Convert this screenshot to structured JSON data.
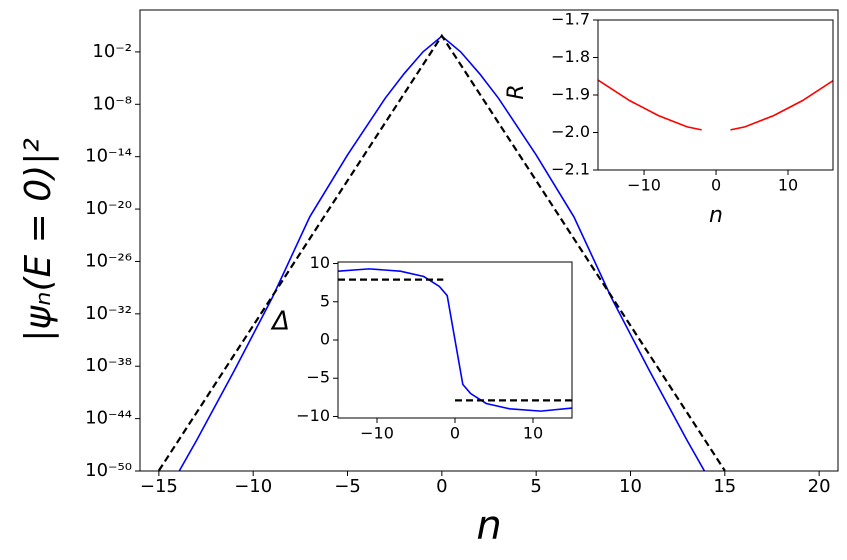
{
  "chart_data": [
    {
      "type": "line",
      "y_scale": "log",
      "x_label": "n",
      "y_label": "|ψₙ(E = 0)|²",
      "xlim": [
        -16,
        21
      ],
      "ylim": [
        1e-50,
        630
      ],
      "xticks": [
        {
          "value": -15,
          "label": "−15"
        },
        {
          "value": -10,
          "label": "−10"
        },
        {
          "value": -5,
          "label": "−5"
        },
        0,
        5,
        10,
        15,
        20
      ],
      "yticks": [
        {
          "value": 0.01,
          "label": "10⁻²"
        },
        {
          "value": 1e-08,
          "label": "10⁻⁸"
        },
        {
          "value": 1e-14,
          "label": "10⁻¹⁴"
        },
        {
          "value": 1e-20,
          "label": "10⁻²⁰"
        },
        {
          "value": 1e-26,
          "label": "10⁻²⁶"
        },
        {
          "value": 1e-32,
          "label": "10⁻³²"
        },
        {
          "value": 1e-38,
          "label": "10⁻³⁸"
        },
        {
          "value": 1e-44,
          "label": "10⁻⁴⁴"
        },
        {
          "value": 1e-50,
          "label": "10⁻⁵⁰"
        }
      ],
      "series": [
        {
          "color": "#0000ff",
          "dash": false,
          "x": [
            -14,
            -13,
            -11,
            -9,
            -7,
            -5,
            -3,
            -2,
            -1,
            0,
            1,
            2,
            3,
            5,
            7,
            9,
            11,
            13,
            14
          ],
          "values": [
            5e-51,
            3.2e-47,
            3.2e-39,
            6.3e-31,
            1.3e-21,
            1.6e-14,
            5e-08,
            3.2e-05,
            0.01,
            0.63,
            0.01,
            3.2e-05,
            5e-08,
            1.6e-14,
            1.3e-21,
            6.3e-31,
            3.2e-39,
            3.2e-47,
            5e-51
          ]
        },
        {
          "color": "#000000",
          "dash": true,
          "x": [
            -15,
            -10,
            -5,
            0,
            5,
            10,
            15
          ],
          "values": [
            1.1e-50,
            4.5e-34,
            1.8e-17,
            0.7,
            1.8e-17,
            4.5e-34,
            1.1e-50
          ]
        }
      ]
    },
    {
      "type": "line",
      "y_label": "Δ",
      "xlim": [
        -15,
        15
      ],
      "ylim": [
        -10.2,
        10.2
      ],
      "xticks": [
        {
          "value": -10,
          "label": "−10"
        },
        0,
        10
      ],
      "yticks": [
        {
          "value": -10,
          "label": "−10"
        },
        {
          "value": -5,
          "label": "−5"
        },
        0,
        5,
        10
      ],
      "series": [
        {
          "color": "#0000ff",
          "dash": false,
          "x": [
            -15,
            -11,
            -7,
            -4,
            -2,
            -1,
            1,
            2,
            4,
            7,
            11,
            15
          ],
          "values": [
            9.0,
            9.3,
            9.0,
            8.3,
            7.0,
            5.8,
            -5.8,
            -7.0,
            -8.3,
            -9.0,
            -9.3,
            -8.9
          ]
        },
        {
          "color": "#000000",
          "dash": true,
          "x": [
            -15,
            -1.5,
            -0.5,
            0,
            15
          ],
          "values": [
            7.9,
            7.9,
            null,
            -7.9,
            -7.9
          ]
        }
      ]
    },
    {
      "type": "line",
      "x_label": "n",
      "y_label": "R",
      "xlim": [
        -16.4,
        16.25
      ],
      "ylim": [
        -2.1,
        -1.7
      ],
      "xticks": [
        {
          "value": -10,
          "label": "−10"
        },
        0,
        10
      ],
      "yticks": [
        {
          "value": -2.1,
          "label": "−2.1"
        },
        {
          "value": -2.0,
          "label": "−2.0"
        },
        {
          "value": -1.9,
          "label": "−1.9"
        },
        {
          "value": -1.8,
          "label": "−1.8"
        },
        {
          "value": -1.7,
          "label": "−1.7"
        }
      ],
      "series": [
        {
          "color": "#ff0000",
          "dash": false,
          "x": [
            -16.4,
            -12,
            -8,
            -4,
            -2,
            0,
            2,
            4,
            8,
            12,
            16.4
          ],
          "values": [
            -1.86,
            -1.915,
            -1.955,
            -1.985,
            -1.993,
            null,
            -1.993,
            -1.985,
            -1.955,
            -1.915,
            -1.86
          ]
        }
      ]
    }
  ]
}
